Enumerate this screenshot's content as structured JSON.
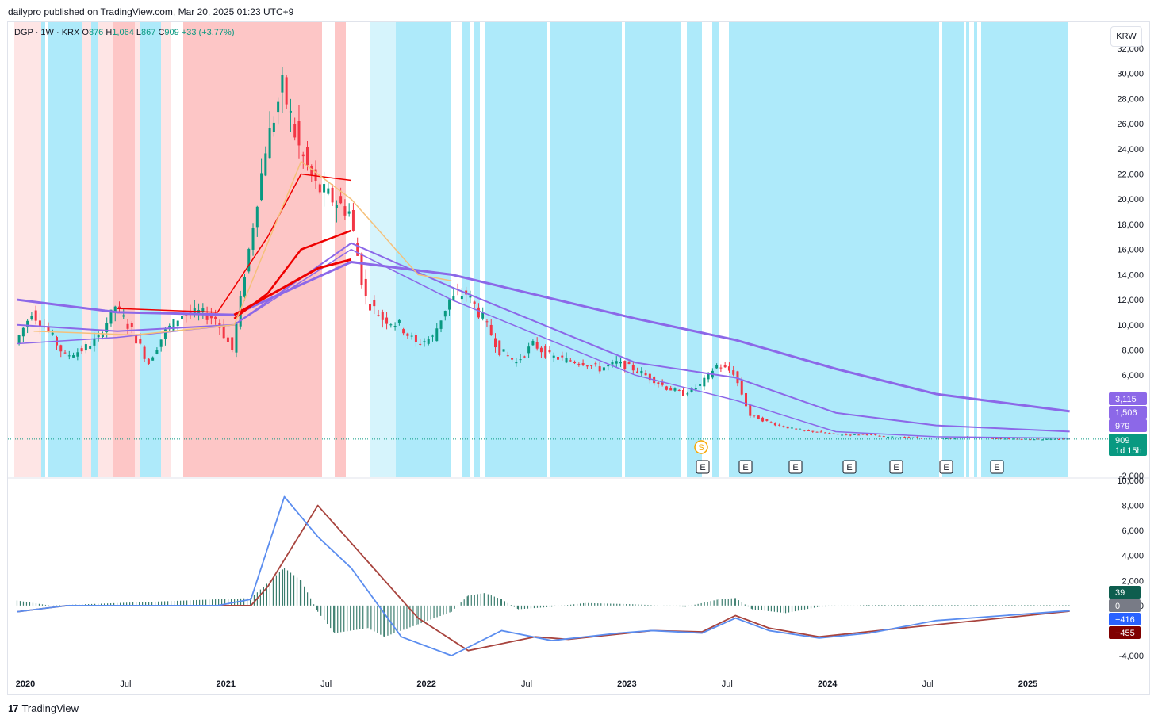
{
  "caption": "dailypro published on TradingView.com, Mar 20, 2025 01:23 UTC+9",
  "footer": {
    "brand": "TradingView",
    "logo_icon": "tradingview-logo-icon"
  },
  "unit_button": "KRW",
  "legend": {
    "symbol": "DGP · 1W · KRX",
    "o_label": "O",
    "o_value": "876",
    "h_label": "H",
    "h_value": "1,064",
    "l_label": "L",
    "l_value": "867",
    "c_label": "C",
    "c_value": "909",
    "change": "+33 (+3.77%)"
  },
  "colors": {
    "up": "#089981",
    "down": "#f23645",
    "ma_purple": "#8c68e8",
    "ma_red": "#ee0000",
    "ma_orange": "#f5c07a",
    "band_blue": "#aeeafa",
    "band_red": "#fdc6c6",
    "macd_line": "#5b8def",
    "signal_line": "#a8443e"
  },
  "chart_data": [
    {
      "type": "candlestick",
      "title": "DGP · 1W · KRX",
      "y_axis": {
        "min": -2000,
        "max": 32000,
        "ticks": [
          "32,000",
          "30,000",
          "28,000",
          "26,000",
          "24,000",
          "22,000",
          "20,000",
          "18,000",
          "16,000",
          "14,000",
          "12,000",
          "10,000",
          "8,000",
          "6,000",
          "4,000",
          "2,000",
          "0",
          "-2,000"
        ],
        "tick_values": [
          32000,
          30000,
          28000,
          26000,
          24000,
          22000,
          20000,
          18000,
          16000,
          14000,
          12000,
          10000,
          8000,
          6000,
          4000,
          2000,
          0,
          -2000
        ]
      },
      "x_axis": {
        "labels": [
          "2020",
          "Jul",
          "2021",
          "Jul",
          "2022",
          "Jul",
          "2023",
          "Jul",
          "2024",
          "Jul",
          "2025"
        ],
        "label_dates": [
          "2020-01",
          "2020-07",
          "2021-01",
          "2021-07",
          "2022-01",
          "2022-07",
          "2023-01",
          "2023-07",
          "2024-01",
          "2024-07",
          "2025-01"
        ]
      },
      "close_series": [
        {
          "date": "2019-12",
          "close": 8500
        },
        {
          "date": "2020-01",
          "close": 11000
        },
        {
          "date": "2020-02",
          "close": 9500
        },
        {
          "date": "2020-03",
          "close": 7500
        },
        {
          "date": "2020-04",
          "close": 8000
        },
        {
          "date": "2020-05",
          "close": 9000
        },
        {
          "date": "2020-06",
          "close": 11500
        },
        {
          "date": "2020-07",
          "close": 9500
        },
        {
          "date": "2020-08",
          "close": 7000
        },
        {
          "date": "2020-09",
          "close": 9500
        },
        {
          "date": "2020-10",
          "close": 10800
        },
        {
          "date": "2020-11",
          "close": 11000
        },
        {
          "date": "2020-12",
          "close": 10500
        },
        {
          "date": "2021-01",
          "close": 8000
        },
        {
          "date": "2021-02",
          "close": 16000
        },
        {
          "date": "2021-03",
          "close": 24000
        },
        {
          "date": "2021-04",
          "close": 29000
        },
        {
          "date": "2021-05",
          "close": 24000
        },
        {
          "date": "2021-06",
          "close": 21000
        },
        {
          "date": "2021-07",
          "close": 20000
        },
        {
          "date": "2021-08",
          "close": 19000
        },
        {
          "date": "2021-09",
          "close": 12000
        },
        {
          "date": "2021-10",
          "close": 10500
        },
        {
          "date": "2021-11",
          "close": 10000
        },
        {
          "date": "2021-12",
          "close": 8500
        },
        {
          "date": "2022-01",
          "close": 9000
        },
        {
          "date": "2022-02",
          "close": 12000
        },
        {
          "date": "2022-03",
          "close": 12500
        },
        {
          "date": "2022-04",
          "close": 10500
        },
        {
          "date": "2022-05",
          "close": 8000
        },
        {
          "date": "2022-06",
          "close": 7000
        },
        {
          "date": "2022-07",
          "close": 8500
        },
        {
          "date": "2022-08",
          "close": 7500
        },
        {
          "date": "2022-09",
          "close": 7200
        },
        {
          "date": "2022-10",
          "close": 7000
        },
        {
          "date": "2022-11",
          "close": 6500
        },
        {
          "date": "2022-12",
          "close": 7000
        },
        {
          "date": "2023-01",
          "close": 6500
        },
        {
          "date": "2023-02",
          "close": 5800
        },
        {
          "date": "2023-03",
          "close": 5000
        },
        {
          "date": "2023-04",
          "close": 4500
        },
        {
          "date": "2023-05",
          "close": 5200
        },
        {
          "date": "2023-06",
          "close": 6800
        },
        {
          "date": "2023-07",
          "close": 6200
        },
        {
          "date": "2023-08",
          "close": 2800
        },
        {
          "date": "2023-09",
          "close": 2300
        },
        {
          "date": "2023-10",
          "close": 1900
        },
        {
          "date": "2023-11",
          "close": 1600
        },
        {
          "date": "2023-12",
          "close": 1500
        },
        {
          "date": "2024-01",
          "close": 1300
        },
        {
          "date": "2024-02",
          "close": 1250
        },
        {
          "date": "2024-03",
          "close": 1300
        },
        {
          "date": "2024-04",
          "close": 1100
        },
        {
          "date": "2024-05",
          "close": 1050
        },
        {
          "date": "2024-06",
          "close": 1000
        },
        {
          "date": "2024-07",
          "close": 1000
        },
        {
          "date": "2024-08",
          "close": 950
        },
        {
          "date": "2024-09",
          "close": 1100
        },
        {
          "date": "2024-10",
          "close": 1000
        },
        {
          "date": "2024-11",
          "close": 950
        },
        {
          "date": "2024-12",
          "close": 920
        },
        {
          "date": "2025-01",
          "close": 900
        },
        {
          "date": "2025-02",
          "close": 890
        },
        {
          "date": "2025-03",
          "close": 909
        }
      ],
      "moving_averages": [
        {
          "color": "#8c68e8",
          "points": [
            {
              "date": "2019-12",
              "value": 12000
            },
            {
              "date": "2020-06",
              "value": 11000
            },
            {
              "date": "2021-01",
              "value": 10800
            },
            {
              "date": "2021-08",
              "value": 15000
            },
            {
              "date": "2022-02",
              "value": 14000
            },
            {
              "date": "2023-01",
              "value": 10500
            },
            {
              "date": "2023-07",
              "value": 8800
            },
            {
              "date": "2024-01",
              "value": 6500
            },
            {
              "date": "2024-07",
              "value": 4500
            },
            {
              "date": "2025-03",
              "value": 3115
            }
          ]
        },
        {
          "color": "#8c68e8",
          "points": [
            {
              "date": "2019-12",
              "value": 10000
            },
            {
              "date": "2020-06",
              "value": 9500
            },
            {
              "date": "2021-01",
              "value": 10000
            },
            {
              "date": "2021-08",
              "value": 16500
            },
            {
              "date": "2022-02",
              "value": 13000
            },
            {
              "date": "2023-01",
              "value": 7000
            },
            {
              "date": "2023-07",
              "value": 5800
            },
            {
              "date": "2024-01",
              "value": 3000
            },
            {
              "date": "2024-07",
              "value": 2000
            },
            {
              "date": "2025-03",
              "value": 1506
            }
          ]
        },
        {
          "color": "#8c68e8",
          "points": [
            {
              "date": "2019-12",
              "value": 8500
            },
            {
              "date": "2020-06",
              "value": 9000
            },
            {
              "date": "2021-01",
              "value": 10000
            },
            {
              "date": "2021-08",
              "value": 16000
            },
            {
              "date": "2022-02",
              "value": 12000
            },
            {
              "date": "2023-01",
              "value": 6000
            },
            {
              "date": "2023-07",
              "value": 4000
            },
            {
              "date": "2024-01",
              "value": 1500
            },
            {
              "date": "2024-07",
              "value": 1100
            },
            {
              "date": "2025-03",
              "value": 979
            }
          ]
        },
        {
          "color": "#ee0000",
          "points": [
            {
              "date": "2020-06",
              "value": 11300
            },
            {
              "date": "2020-12",
              "value": 11000
            },
            {
              "date": "2021-03",
              "value": 17000
            },
            {
              "date": "2021-05",
              "value": 22000
            },
            {
              "date": "2021-08",
              "value": 21500
            }
          ]
        },
        {
          "color": "#ee0000",
          "points": [
            {
              "date": "2021-01",
              "value": 10500
            },
            {
              "date": "2021-03",
              "value": 12500
            },
            {
              "date": "2021-05",
              "value": 16000
            },
            {
              "date": "2021-08",
              "value": 17500
            }
          ]
        },
        {
          "color": "#ee0000",
          "points": [
            {
              "date": "2021-01",
              "value": 10800
            },
            {
              "date": "2021-04",
              "value": 13000
            },
            {
              "date": "2021-06",
              "value": 14500
            },
            {
              "date": "2021-08",
              "value": 15200
            }
          ]
        },
        {
          "color": "#f5c07a",
          "points": [
            {
              "date": "2020-01",
              "value": 9500
            },
            {
              "date": "2020-07",
              "value": 9200
            },
            {
              "date": "2021-01",
              "value": 10000
            },
            {
              "date": "2021-05",
              "value": 23000
            },
            {
              "date": "2021-08",
              "value": 20000
            },
            {
              "date": "2021-12",
              "value": 14000
            },
            {
              "date": "2022-02",
              "value": 13500
            }
          ]
        }
      ],
      "right_tags": [
        {
          "value": 3115,
          "text": "3,115",
          "color": "#8c68e8"
        },
        {
          "value": 1506,
          "text": "1,506",
          "color": "#8c68e8"
        },
        {
          "value": 979,
          "text": "979",
          "color": "#8c68e8"
        },
        {
          "value": 909,
          "text": "909",
          "text2": "1d 15h",
          "color": "#089981"
        }
      ],
      "event_markers": [
        {
          "label": "S",
          "date": "2023-06",
          "color": "#f7a600"
        },
        {
          "label": "E",
          "date": "2023-06"
        },
        {
          "label": "E",
          "date": "2023-08"
        },
        {
          "label": "E",
          "date": "2023-11"
        },
        {
          "label": "E",
          "date": "2024-03"
        },
        {
          "label": "E",
          "date": "2024-05"
        },
        {
          "label": "E",
          "date": "2024-08"
        },
        {
          "label": "E",
          "date": "2024-11"
        }
      ]
    },
    {
      "type": "macd",
      "y_axis": {
        "min": -4000,
        "max": 10000,
        "ticks": [
          "10,000",
          "8,000",
          "6,000",
          "4,000",
          "2,000",
          "0",
          "-4,000"
        ],
        "tick_values": [
          10000,
          8000,
          6000,
          4000,
          2000,
          0,
          -4000
        ]
      },
      "macd_line": [
        {
          "date": "2019-12",
          "value": -500
        },
        {
          "date": "2020-03",
          "value": 0
        },
        {
          "date": "2020-12",
          "value": 0
        },
        {
          "date": "2021-02",
          "value": 500
        },
        {
          "date": "2021-04",
          "value": 8700
        },
        {
          "date": "2021-06",
          "value": 5500
        },
        {
          "date": "2021-08",
          "value": 3000
        },
        {
          "date": "2021-11",
          "value": -2500
        },
        {
          "date": "2022-02",
          "value": -4000
        },
        {
          "date": "2022-05",
          "value": -2000
        },
        {
          "date": "2022-08",
          "value": -2800
        },
        {
          "date": "2022-12",
          "value": -2200
        },
        {
          "date": "2023-02",
          "value": -2000
        },
        {
          "date": "2023-05",
          "value": -2200
        },
        {
          "date": "2023-07",
          "value": -1000
        },
        {
          "date": "2023-09",
          "value": -2000
        },
        {
          "date": "2023-12",
          "value": -2600
        },
        {
          "date": "2024-03",
          "value": -2200
        },
        {
          "date": "2024-07",
          "value": -1200
        },
        {
          "date": "2025-03",
          "value": -416
        }
      ],
      "signal_line": [
        {
          "date": "2019-12",
          "value": -500
        },
        {
          "date": "2020-03",
          "value": 0
        },
        {
          "date": "2021-02",
          "value": 0
        },
        {
          "date": "2021-03",
          "value": 1500
        },
        {
          "date": "2021-06",
          "value": 8000
        },
        {
          "date": "2021-09",
          "value": 3500
        },
        {
          "date": "2021-12",
          "value": -1000
        },
        {
          "date": "2022-03",
          "value": -3600
        },
        {
          "date": "2022-07",
          "value": -2500
        },
        {
          "date": "2022-09",
          "value": -2700
        },
        {
          "date": "2023-02",
          "value": -2000
        },
        {
          "date": "2023-05",
          "value": -2100
        },
        {
          "date": "2023-07",
          "value": -800
        },
        {
          "date": "2023-09",
          "value": -1800
        },
        {
          "date": "2023-12",
          "value": -2500
        },
        {
          "date": "2024-05",
          "value": -1800
        },
        {
          "date": "2025-03",
          "value": -455
        }
      ],
      "histogram": [
        {
          "date": "2019-12",
          "value": 400
        },
        {
          "date": "2020-02",
          "value": 0
        },
        {
          "date": "2021-02",
          "value": 600
        },
        {
          "date": "2021-04",
          "value": 3000
        },
        {
          "date": "2021-05",
          "value": 2000
        },
        {
          "date": "2021-06",
          "value": -500
        },
        {
          "date": "2021-07",
          "value": -2200
        },
        {
          "date": "2021-09",
          "value": -1800
        },
        {
          "date": "2021-10",
          "value": -2500
        },
        {
          "date": "2021-12",
          "value": -1500
        },
        {
          "date": "2022-02",
          "value": -500
        },
        {
          "date": "2022-03",
          "value": 800
        },
        {
          "date": "2022-04",
          "value": 1000
        },
        {
          "date": "2022-05",
          "value": 500
        },
        {
          "date": "2022-06",
          "value": -300
        },
        {
          "date": "2022-08",
          "value": -100
        },
        {
          "date": "2022-10",
          "value": 200
        },
        {
          "date": "2023-01",
          "value": 100
        },
        {
          "date": "2023-04",
          "value": -100
        },
        {
          "date": "2023-06",
          "value": 500
        },
        {
          "date": "2023-07",
          "value": 600
        },
        {
          "date": "2023-08",
          "value": -300
        },
        {
          "date": "2023-10",
          "value": -600
        },
        {
          "date": "2023-12",
          "value": -100
        },
        {
          "date": "2024-03",
          "value": 50
        },
        {
          "date": "2025-03",
          "value": 39
        }
      ],
      "right_tags": [
        {
          "value": 39,
          "text": "39",
          "color": "#0e5d4e"
        },
        {
          "value": 0,
          "text": "0",
          "color": "#787b86"
        },
        {
          "value": -416,
          "text": "−416",
          "color": "#2962ff"
        },
        {
          "value": -455,
          "text": "−455",
          "color": "#800000"
        }
      ]
    }
  ]
}
